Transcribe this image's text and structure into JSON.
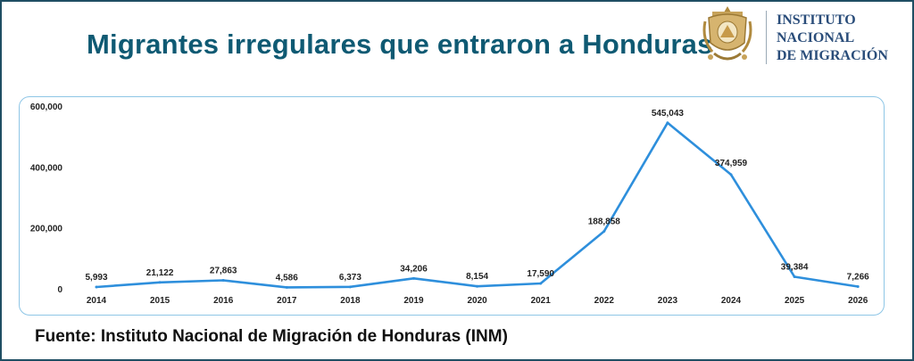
{
  "header": {
    "title": "Migrantes irregulares que entraron a Honduras",
    "institution_lines": [
      "INSTITUTO",
      "NACIONAL",
      "DE MIGRACIÓN"
    ]
  },
  "footer": {
    "source": "Fuente: Instituto Nacional de Migración de Honduras (INM)"
  },
  "colors": {
    "title": "#0f5a73",
    "line": "#2e8fdc",
    "frame": "#1f4e63",
    "chart_border": "#8ec6e6"
  },
  "chart_data": {
    "type": "line",
    "title": "",
    "xlabel": "",
    "ylabel": "",
    "categories": [
      "2014",
      "2015",
      "2016",
      "2017",
      "2018",
      "2019",
      "2020",
      "2021",
      "2022",
      "2023",
      "2024",
      "2025",
      "2026"
    ],
    "series": [
      {
        "values": [
          5993,
          21122,
          27863,
          4586,
          6373,
          34206,
          8154,
          17590,
          188858,
          545043,
          374959,
          39384,
          7266
        ],
        "labels": [
          "5,993",
          "21,122",
          "27,863",
          "4,586",
          "6,373",
          "34,206",
          "8,154",
          "17,590",
          "188,858",
          "545,043",
          "374,959",
          "39,384",
          "7,266"
        ]
      }
    ],
    "ylim": [
      0,
      600000
    ],
    "yticks": [
      0,
      200000,
      400000,
      600000
    ],
    "ytick_labels": [
      "0",
      "200,000",
      "400,000",
      "600,000"
    ],
    "grid": false,
    "legend": "none"
  }
}
